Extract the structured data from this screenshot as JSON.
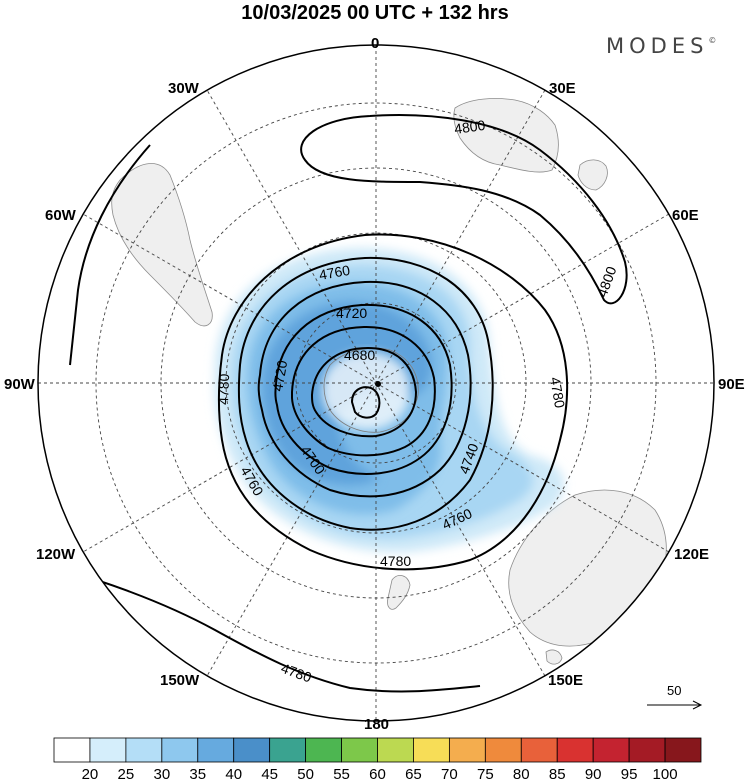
{
  "title": "10/03/2025  00 UTC  + 132 hrs",
  "brand": "MODES",
  "brand_mark": "©",
  "longitude_labels": {
    "lon_0": "0",
    "lon_30e": "30E",
    "lon_60e": "60E",
    "lon_90e": "90E",
    "lon_120e": "120E",
    "lon_150e": "150E",
    "lon_180": "180",
    "lon_150w": "150W",
    "lon_120w": "120W",
    "lon_90w": "90W",
    "lon_60w": "60W",
    "lon_30w": "30W"
  },
  "contour_labels": [
    "4800",
    "4800",
    "4760",
    "4720",
    "4680",
    "4720",
    "4780",
    "4780",
    "4760",
    "4700",
    "4740",
    "4760",
    "4780",
    "4780"
  ],
  "wind_reference": {
    "value": "50"
  },
  "colorbar": {
    "labels": [
      "20",
      "25",
      "30",
      "35",
      "40",
      "45",
      "50",
      "55",
      "60",
      "65",
      "70",
      "75",
      "80",
      "85",
      "90",
      "95",
      "100"
    ],
    "colors": [
      "#ffffff",
      "#d5eefb",
      "#b4def7",
      "#8ec8ee",
      "#66aadf",
      "#4a8fc9",
      "#3aa390",
      "#4db651",
      "#7dc84a",
      "#bcd951",
      "#f7dd57",
      "#f4ad4e",
      "#ef8a3c",
      "#e8613a",
      "#d93230",
      "#c42330",
      "#a41b25",
      "#87171c"
    ]
  }
}
